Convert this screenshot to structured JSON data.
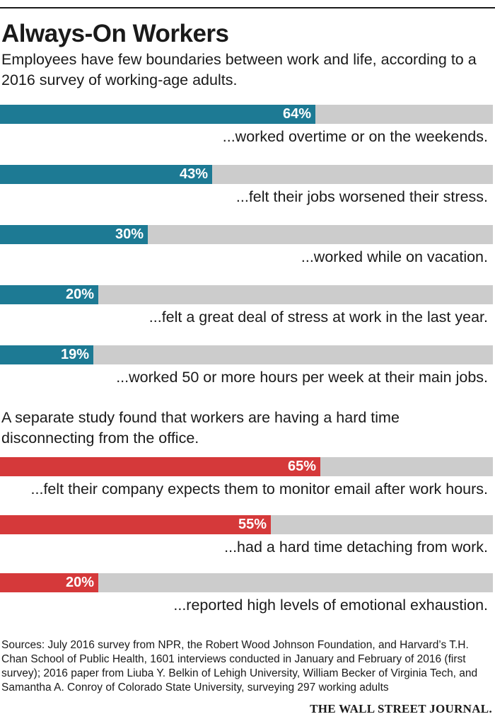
{
  "header": {
    "title": "Always-On Workers",
    "subtitle": "Employees have few boundaries between work and life, according to a 2016 survey of working-age adults."
  },
  "section2": {
    "text": "A separate study found that workers are having a hard time disconnecting from the office."
  },
  "footer": {
    "sources": "Sources: July 2016 survey from NPR, the Robert Wood Johnson Foundation, and Harvard’s T.H. Chan School of Public Health, 1601 interviews conducted in January and February of 2016 (first survey); 2016 paper from Liuba Y. Belkin of Lehigh University, William Becker of Virginia Tech, and Samantha A. Conroy of Colorado State University, surveying 297 working adults",
    "brand": "THE WALL STREET JOURNAL."
  },
  "colors": {
    "blue": "#1d7a94",
    "red": "#d5393a",
    "track": "#cccccc"
  },
  "chart_data": [
    {
      "type": "bar",
      "orientation": "horizontal",
      "xlim": [
        0,
        100
      ],
      "unit": "%",
      "color": "#1d7a94",
      "categories": [
        "...worked overtime or on the weekends.",
        "...felt their jobs worsened their stress.",
        "...worked while on vacation.",
        "...felt a great deal of stress at work in the last year.",
        "...worked 50 or more hours per week at their main jobs."
      ],
      "values": [
        64,
        43,
        30,
        20,
        19
      ],
      "value_labels": [
        "64%",
        "43%",
        "30%",
        "20%",
        "19%"
      ]
    },
    {
      "type": "bar",
      "orientation": "horizontal",
      "xlim": [
        0,
        100
      ],
      "unit": "%",
      "color": "#d5393a",
      "categories": [
        "...felt their company expects them to monitor email after work hours.",
        "...had a hard time detaching from work.",
        "...reported high levels of emotional exhaustion."
      ],
      "values": [
        65,
        55,
        20
      ],
      "value_labels": [
        "65%",
        "55%",
        "20%"
      ]
    }
  ]
}
